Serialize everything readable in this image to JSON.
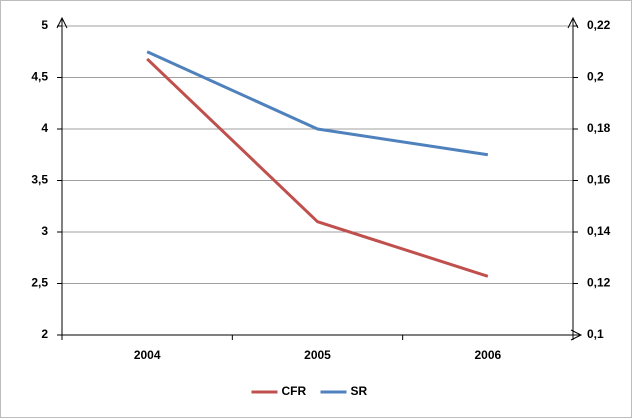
{
  "chart_data": {
    "type": "line",
    "categories": [
      "2004",
      "2005",
      "2006"
    ],
    "series": [
      {
        "name": "CFR",
        "color": "#c0504d",
        "values": [
          4.68,
          3.1,
          2.57
        ]
      },
      {
        "name": "SR",
        "color": "#4f81bd",
        "values": [
          0.21,
          0.18,
          0.17
        ],
        "axis": "y2"
      }
    ],
    "ylim": [
      2,
      5
    ],
    "yticks": [
      2,
      {
        "value": 2.5,
        "label": "2,5"
      },
      3,
      {
        "value": 3.5,
        "label": "3,5"
      },
      4,
      {
        "value": 4.5,
        "label": "4,5"
      },
      5
    ],
    "y2lim": [
      0.1,
      0.22
    ],
    "y2ticks": [
      {
        "value": 0.1,
        "label": "0,1"
      },
      {
        "value": 0.12,
        "label": "0,12"
      },
      {
        "value": 0.14,
        "label": "0,14"
      },
      {
        "value": 0.16,
        "label": "0,16"
      },
      {
        "value": 0.18,
        "label": "0,18"
      },
      {
        "value": 0.2,
        "label": "0,2"
      },
      {
        "value": 0.22,
        "label": "0,22"
      }
    ],
    "grid": true,
    "legend": "bottom"
  }
}
